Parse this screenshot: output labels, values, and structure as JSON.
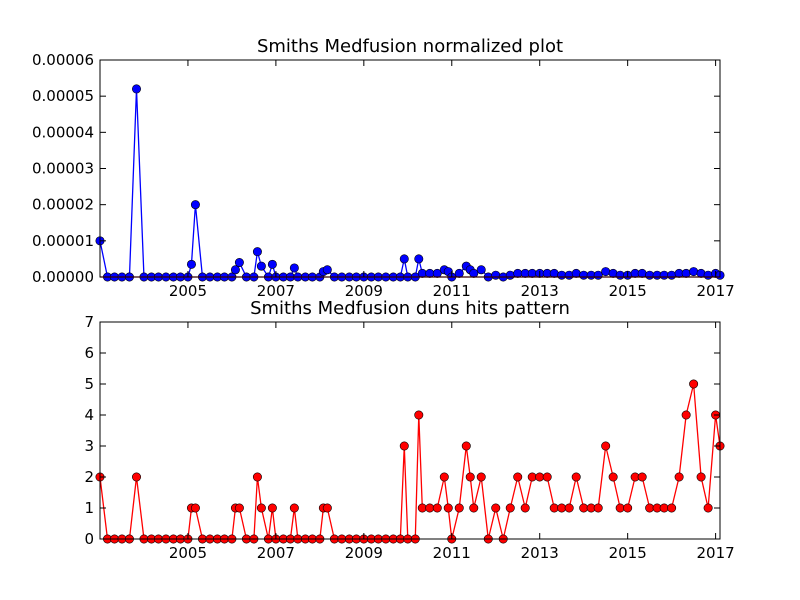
{
  "chart_data": [
    {
      "type": "line",
      "title": "Smiths Medfusion normalized plot",
      "xlabel": "",
      "ylabel": "",
      "xlim": [
        2003.0,
        2017.1
      ],
      "ylim": [
        0,
        6e-05
      ],
      "x_ticks": [
        "2005",
        "2007",
        "2009",
        "2011",
        "2013",
        "2015",
        "2017"
      ],
      "y_ticks": [
        "0.00000",
        "0.00001",
        "0.00002",
        "0.00003",
        "0.00004",
        "0.00005",
        "0.00006"
      ],
      "grid": false,
      "series": [
        {
          "color": "#0000ff",
          "marker": "circle",
          "x": [
            2003.0,
            2003.17,
            2003.33,
            2003.5,
            2003.67,
            2003.83,
            2004.0,
            2004.17,
            2004.33,
            2004.5,
            2004.67,
            2004.83,
            2005.0,
            2005.08,
            2005.17,
            2005.33,
            2005.5,
            2005.67,
            2005.83,
            2006.0,
            2006.08,
            2006.17,
            2006.33,
            2006.5,
            2006.58,
            2006.67,
            2006.83,
            2006.92,
            2007.0,
            2007.17,
            2007.33,
            2007.42,
            2007.5,
            2007.67,
            2007.83,
            2008.0,
            2008.08,
            2008.17,
            2008.33,
            2008.5,
            2008.67,
            2008.83,
            2009.0,
            2009.17,
            2009.33,
            2009.5,
            2009.67,
            2009.83,
            2009.92,
            2010.0,
            2010.17,
            2010.25,
            2010.33,
            2010.5,
            2010.67,
            2010.83,
            2010.92,
            2011.0,
            2011.17,
            2011.33,
            2011.42,
            2011.5,
            2011.67,
            2011.83,
            2012.0,
            2012.17,
            2012.33,
            2012.5,
            2012.67,
            2012.83,
            2013.0,
            2013.17,
            2013.33,
            2013.5,
            2013.67,
            2013.83,
            2014.0,
            2014.17,
            2014.33,
            2014.5,
            2014.67,
            2014.83,
            2015.0,
            2015.17,
            2015.33,
            2015.5,
            2015.67,
            2015.83,
            2016.0,
            2016.17,
            2016.33,
            2016.5,
            2016.67,
            2016.83,
            2017.0,
            2017.1
          ],
          "values": [
            1e-05,
            0,
            0,
            0,
            0,
            5.2e-05,
            0,
            0,
            0,
            0,
            0,
            0,
            0,
            3.5e-06,
            2e-05,
            0,
            0,
            0,
            0,
            0,
            2e-06,
            4e-06,
            0,
            0,
            7e-06,
            3e-06,
            0,
            3.5e-06,
            0,
            0,
            0,
            2.5e-06,
            0,
            0,
            0,
            0,
            1.5e-06,
            2e-06,
            0,
            0,
            0,
            0,
            0,
            0,
            0,
            0,
            0,
            0,
            5e-06,
            0,
            0,
            5e-06,
            1e-06,
            1e-06,
            1e-06,
            2e-06,
            1.5e-06,
            0,
            1e-06,
            3e-06,
            2e-06,
            1e-06,
            2e-06,
            0,
            5e-07,
            0,
            5e-07,
            1e-06,
            1e-06,
            1e-06,
            1e-06,
            1e-06,
            1e-06,
            5e-07,
            5e-07,
            1e-06,
            5e-07,
            5e-07,
            5e-07,
            1.5e-06,
            1e-06,
            5e-07,
            5e-07,
            1e-06,
            1e-06,
            5e-07,
            5e-07,
            5e-07,
            5e-07,
            1e-06,
            1e-06,
            1.5e-06,
            1e-06,
            5e-07,
            1e-06,
            5e-07
          ]
        },
        {
          "color": "#ff0000",
          "marker": "none",
          "x": [
            2003.0,
            2017.1
          ],
          "values": [
            0,
            0
          ]
        }
      ]
    },
    {
      "type": "line",
      "title": "Smiths Medfusion duns hits pattern",
      "xlabel": "",
      "ylabel": "",
      "xlim": [
        2003.0,
        2017.1
      ],
      "ylim": [
        0,
        7
      ],
      "x_ticks": [
        "2005",
        "2007",
        "2009",
        "2011",
        "2013",
        "2015",
        "2017"
      ],
      "y_ticks": [
        "0",
        "1",
        "2",
        "3",
        "4",
        "5",
        "6",
        "7"
      ],
      "grid": false,
      "series": [
        {
          "color": "#ff0000",
          "marker": "circle",
          "x": [
            2003.0,
            2003.17,
            2003.33,
            2003.5,
            2003.67,
            2003.83,
            2004.0,
            2004.17,
            2004.33,
            2004.5,
            2004.67,
            2004.83,
            2005.0,
            2005.08,
            2005.17,
            2005.33,
            2005.5,
            2005.67,
            2005.83,
            2006.0,
            2006.08,
            2006.17,
            2006.33,
            2006.5,
            2006.58,
            2006.67,
            2006.83,
            2006.92,
            2007.0,
            2007.17,
            2007.33,
            2007.42,
            2007.5,
            2007.67,
            2007.83,
            2008.0,
            2008.08,
            2008.17,
            2008.33,
            2008.5,
            2008.67,
            2008.83,
            2009.0,
            2009.17,
            2009.33,
            2009.5,
            2009.67,
            2009.83,
            2009.92,
            2010.0,
            2010.17,
            2010.25,
            2010.33,
            2010.5,
            2010.67,
            2010.83,
            2010.92,
            2011.0,
            2011.17,
            2011.33,
            2011.42,
            2011.5,
            2011.67,
            2011.83,
            2012.0,
            2012.17,
            2012.33,
            2012.5,
            2012.67,
            2012.83,
            2013.0,
            2013.17,
            2013.33,
            2013.5,
            2013.67,
            2013.83,
            2014.0,
            2014.17,
            2014.33,
            2014.5,
            2014.67,
            2014.83,
            2015.0,
            2015.17,
            2015.33,
            2015.5,
            2015.67,
            2015.83,
            2016.0,
            2016.17,
            2016.33,
            2016.5,
            2016.67,
            2016.83,
            2017.0,
            2017.1
          ],
          "values": [
            2,
            0,
            0,
            0,
            0,
            2,
            0,
            0,
            0,
            0,
            0,
            0,
            0,
            1,
            1,
            0,
            0,
            0,
            0,
            0,
            1,
            1,
            0,
            0,
            2,
            1,
            0,
            1,
            0,
            0,
            0,
            1,
            0,
            0,
            0,
            0,
            1,
            1,
            0,
            0,
            0,
            0,
            0,
            0,
            0,
            0,
            0,
            0,
            3,
            0,
            0,
            4,
            1,
            1,
            1,
            2,
            1,
            0,
            1,
            3,
            2,
            1,
            2,
            0,
            1,
            0,
            1,
            2,
            1,
            2,
            2,
            2,
            1,
            1,
            1,
            2,
            1,
            1,
            1,
            3,
            2,
            1,
            1,
            2,
            2,
            1,
            1,
            1,
            1,
            2,
            4,
            5,
            2,
            1,
            4,
            3
          ]
        }
      ]
    }
  ]
}
